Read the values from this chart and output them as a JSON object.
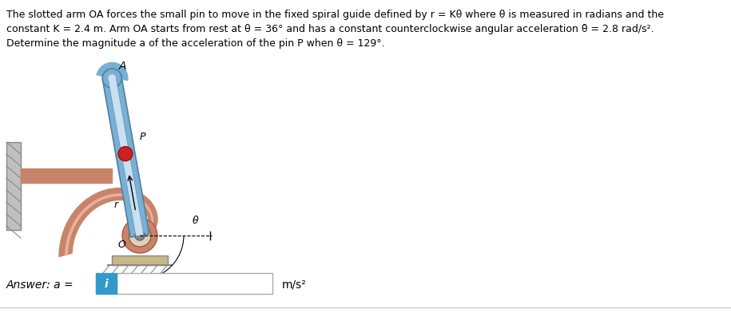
{
  "title_line1": "The slotted arm OA forces the small pin to move in the fixed spiral guide defined by r = Kθ where θ is measured in radians and the",
  "title_line2": "constant K = 2.4 m. Arm OA starts from rest at θ = 36° and has a constant counterclockwise angular acceleration θ̈ = 2.8 rad/s².",
  "title_line3": "Determine the magnitude a of the acceleration of the pin P when θ = 129°.",
  "answer_label": "Answer: a =",
  "answer_unit": "m/s²",
  "bg_color": "#ffffff",
  "box_color": "#3399cc",
  "text_color": "#000000",
  "arm_color_outer": "#7ab0d4",
  "arm_color_inner": "#c8e0f0",
  "spiral_color_outer": "#c8846a",
  "spiral_color_inner": "#e8b09a",
  "pin_color": "#cc2222",
  "wall_color": "#c8c8c8",
  "pivot_color": "#aaaaaa",
  "ground_color": "#888888"
}
